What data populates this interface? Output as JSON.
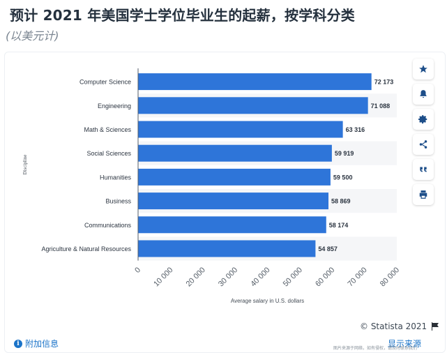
{
  "header": {
    "title": "预计 2021 年美国学士学位毕业生的起薪，按学科分类",
    "subtitle": "(以美元计)"
  },
  "toolbar": [
    {
      "name": "star-icon"
    },
    {
      "name": "bell-icon"
    },
    {
      "name": "gear-icon"
    },
    {
      "name": "share-icon"
    },
    {
      "name": "quote-icon"
    },
    {
      "name": "print-icon"
    }
  ],
  "footer": {
    "copyright": "© Statista 2021",
    "extra_info": "附加信息",
    "show_source": "显示来源",
    "watermark": "图片来源于网络，如有侵权，请及时联系我们"
  },
  "colors": {
    "bar": "#2e75d9",
    "band": "#f5f6f8",
    "axis": "#555e68"
  },
  "chart_data": {
    "type": "bar",
    "orientation": "horizontal",
    "categories": [
      "Computer Science",
      "Engineering",
      "Math & Sciences",
      "Social Sciences",
      "Humanities",
      "Business",
      "Communications",
      "Agriculture & Natural Resources"
    ],
    "values": [
      72173,
      71088,
      63316,
      59919,
      59500,
      58869,
      58174,
      54857
    ],
    "value_labels": [
      "72 173",
      "71 088",
      "63 316",
      "59 919",
      "59 500",
      "58 869",
      "58 174",
      "54 857"
    ],
    "xlim": [
      0,
      80000
    ],
    "xticks": [
      "0",
      "10 000",
      "20 000",
      "30 000",
      "40 000",
      "50 000",
      "60 000",
      "70 000",
      "80 000"
    ],
    "xlabel": "Average salary in U.S. dollars",
    "ylabel": "Discipline"
  }
}
